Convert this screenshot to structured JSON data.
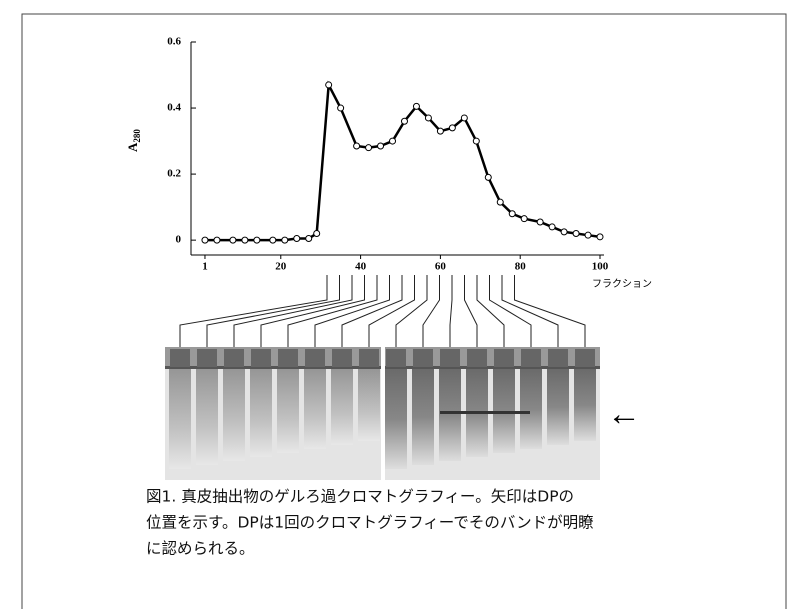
{
  "chart_data": {
    "type": "line",
    "y_label": "A",
    "y_label_sub": "280",
    "x_label": "フラクション",
    "x": [
      1,
      4,
      8,
      11,
      14,
      18,
      21,
      24,
      27,
      29,
      32,
      35,
      39,
      42,
      45,
      48,
      51,
      54,
      57,
      60,
      63,
      66,
      69,
      72,
      75,
      78,
      81,
      85,
      88,
      91,
      94,
      97,
      100
    ],
    "values": [
      0,
      0,
      0,
      0,
      0,
      0,
      0,
      0.005,
      0.005,
      0.02,
      0.47,
      0.4,
      0.285,
      0.28,
      0.285,
      0.3,
      0.36,
      0.405,
      0.37,
      0.33,
      0.34,
      0.37,
      0.3,
      0.19,
      0.115,
      0.08,
      0.065,
      0.055,
      0.04,
      0.025,
      0.02,
      0.015,
      0.01
    ],
    "color": "#000000",
    "xlim": [
      -2.5,
      101
    ],
    "xticks": [
      1,
      20,
      40,
      60,
      80,
      100
    ],
    "ylim": [
      -0.045,
      0.6
    ],
    "yticks": [
      0,
      0.2,
      0.4,
      0.6
    ]
  },
  "caption": [
    "図1. 真皮抽出物のゲルろ過クロマトグラフィー。矢印はDPの",
    "位置を示す。DPは1回のクロマトグラフィーでそのバンドが明瞭",
    "に認められる。"
  ]
}
